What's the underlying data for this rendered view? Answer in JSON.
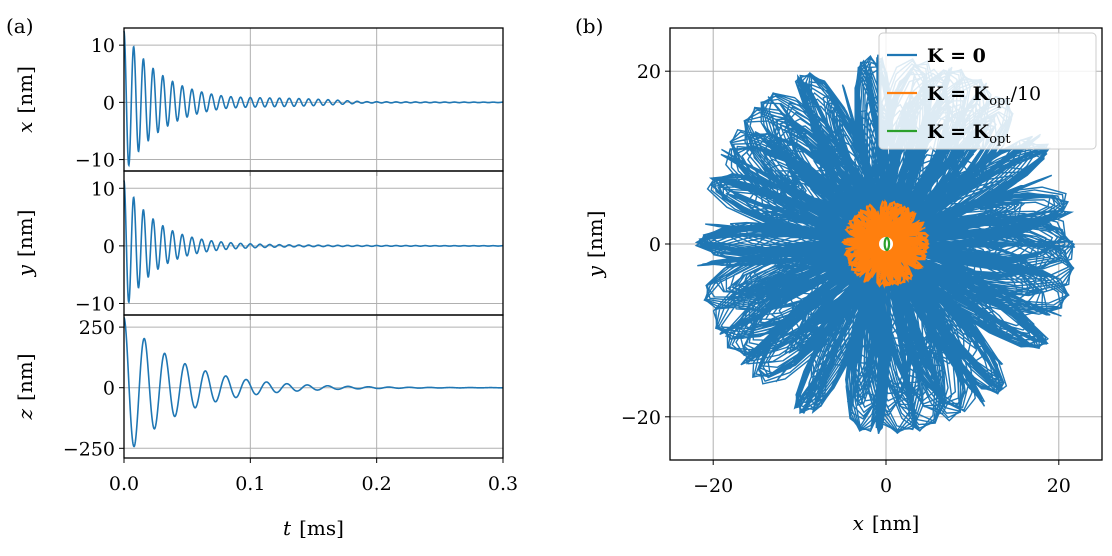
{
  "chart_data": [
    {
      "panel": "(a)",
      "type": "line",
      "ylabel": "x",
      "yunit": "[nm]",
      "xlabel": "",
      "xlim": [
        0.0,
        0.3
      ],
      "ylim": [
        -12,
        13
      ],
      "yticks": [
        -10,
        0,
        10
      ],
      "ytick_labels": [
        "−10",
        "0",
        "10"
      ],
      "grid": true,
      "signal": {
        "amplitude": 12,
        "frequency_per_ms": 130,
        "decay_ms": 0.03,
        "floor": 0.45,
        "color": "#1f77b4"
      }
    },
    {
      "panel": "",
      "type": "line",
      "ylabel": "y",
      "yunit": "[nm]",
      "xlabel": "",
      "xlim": [
        0.0,
        0.3
      ],
      "ylim": [
        -12,
        13
      ],
      "yticks": [
        -10,
        0,
        10
      ],
      "ytick_labels": [
        "−10",
        "0",
        "10"
      ],
      "grid": true,
      "signal": {
        "amplitude": 11,
        "frequency_per_ms": 130,
        "decay_ms": 0.025,
        "floor": 0.35,
        "color": "#1f77b4"
      }
    },
    {
      "panel": "",
      "type": "line",
      "ylabel": "z",
      "yunit": "[nm]",
      "xlabel": "t",
      "xunit": "[ms]",
      "xlim": [
        0.0,
        0.3
      ],
      "xticks": [
        0.0,
        0.1,
        0.2,
        0.3
      ],
      "xtick_labels": [
        "0.0",
        "0.1",
        "0.2",
        "0.3"
      ],
      "ylim": [
        -290,
        300
      ],
      "yticks": [
        -250,
        0,
        250
      ],
      "ytick_labels": [
        "−250",
        "0",
        "250"
      ],
      "grid": true,
      "signal": {
        "amplitude": 290,
        "frequency_per_ms": 62,
        "decay_ms": 0.045,
        "floor": 0,
        "color": "#1f77b4"
      }
    },
    {
      "panel": "(b)",
      "type": "line",
      "xlabel": "x",
      "xunit": "[nm]",
      "ylabel": "y",
      "yunit": "[nm]",
      "xlim": [
        -25,
        25
      ],
      "ylim": [
        -25,
        25
      ],
      "xticks": [
        -20,
        0,
        20
      ],
      "xtick_labels": [
        "−20",
        "0",
        "20"
      ],
      "yticks": [
        -20,
        0,
        20
      ],
      "ytick_labels": [
        "−20",
        "0",
        "20"
      ],
      "grid": true,
      "legend_position": "top-right",
      "series": [
        {
          "name_main": "K = 0",
          "name_sub": "",
          "name_tail": "",
          "color": "#1f77b4",
          "max_radius_nm": 22,
          "petals": 17
        },
        {
          "name_main": "K = K",
          "name_sub": "opt",
          "name_tail": "/10",
          "color": "#ff7f0e",
          "max_radius_nm": 5,
          "petals": 17
        },
        {
          "name_main": "K = K",
          "name_sub": "opt",
          "name_tail": "",
          "color": "#2ca02c",
          "max_radius_nm": 0.6,
          "petals": 1
        }
      ]
    }
  ]
}
